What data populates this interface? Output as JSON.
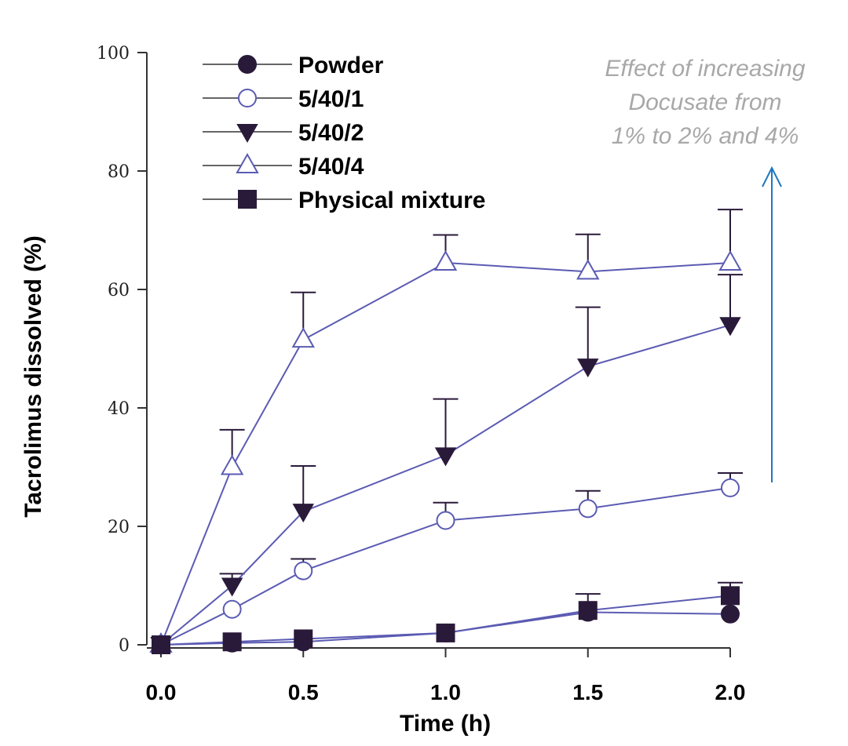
{
  "chart_data": {
    "type": "line",
    "xlabel": "Time (h)",
    "ylabel": "Tacrolimus dissolved (%)",
    "xlim": [
      0,
      2
    ],
    "ylim": [
      0,
      100
    ],
    "x_ticks": [
      "0.0",
      "0.5",
      "1.0",
      "1.5",
      "2.0"
    ],
    "x_tick_values": [
      0,
      0.5,
      1,
      1.5,
      2
    ],
    "y_ticks": [
      "0",
      "20",
      "40",
      "60",
      "80",
      "100"
    ],
    "y_tick_values": [
      0,
      20,
      40,
      60,
      80,
      100
    ],
    "grid": false,
    "legend_position": "top-left",
    "series": [
      {
        "name": "Powder",
        "marker": "circle-filled",
        "x": [
          0,
          0.25,
          0.5,
          1.0,
          1.5,
          2.0
        ],
        "y": [
          0,
          0.3,
          0.5,
          2,
          5.5,
          5.2
        ],
        "err_plus": [
          0,
          0,
          0,
          0,
          0,
          0
        ]
      },
      {
        "name": "5/40/1",
        "marker": "circle-open",
        "x": [
          0,
          0.25,
          0.5,
          1.0,
          1.5,
          2.0
        ],
        "y": [
          0,
          6,
          12.5,
          21,
          23,
          26.5
        ],
        "err_plus": [
          0,
          0,
          2,
          3,
          3,
          2.5
        ]
      },
      {
        "name": "5/40/2",
        "marker": "triangle-down-filled",
        "x": [
          0,
          0.25,
          0.5,
          1.0,
          1.5,
          2.0
        ],
        "y": [
          0,
          10,
          22.5,
          32,
          47,
          54
        ],
        "err_plus": [
          0,
          2,
          7.7,
          9.5,
          10,
          8.5
        ]
      },
      {
        "name": "5/40/4",
        "marker": "triangle-up-open",
        "x": [
          0,
          0.25,
          0.5,
          1.0,
          1.5,
          2.0
        ],
        "y": [
          0,
          30,
          51.5,
          64.5,
          63,
          64.5
        ],
        "err_plus": [
          0,
          6.3,
          8,
          4.7,
          6.3,
          9
        ]
      },
      {
        "name": "Physical mixture",
        "marker": "square-filled",
        "x": [
          0,
          0.25,
          0.5,
          1.0,
          1.5,
          2.0
        ],
        "y": [
          0,
          0.5,
          1,
          2,
          5.8,
          8.3
        ],
        "err_plus": [
          0,
          0,
          0,
          0,
          2.8,
          2.2
        ]
      }
    ],
    "annotation": {
      "lines": [
        "Effect of increasing",
        "Docusate from",
        "1% to 2% and 4%"
      ],
      "color": "#a8a8a8",
      "arrow_color": "#1f78c0"
    }
  },
  "colors": {
    "line": "#5b5bb3",
    "marker": "#2a1a3a",
    "axis": "#333333"
  }
}
